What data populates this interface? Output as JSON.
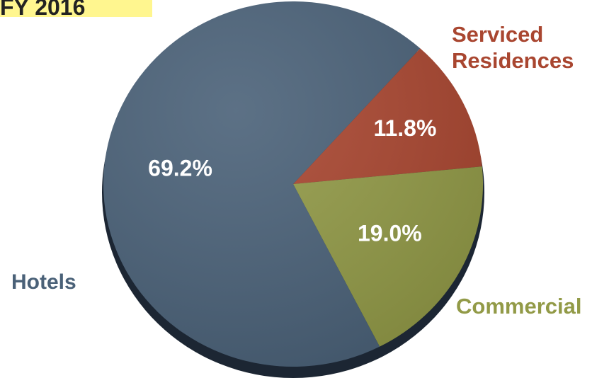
{
  "chart_data": {
    "type": "pie",
    "title": "FY 2016",
    "categories": [
      "Hotels",
      "Serviced Residences",
      "Commercial"
    ],
    "values": [
      69.2,
      11.8,
      19.0
    ],
    "data_labels": [
      "69.2%",
      "11.8%",
      "19.0%"
    ],
    "colors": [
      "#4a6178",
      "#a94630",
      "#929a47"
    ],
    "label_colors": [
      "#4a6178",
      "#a94630",
      "#929a47"
    ]
  },
  "labels": {
    "hotels": "Hotels",
    "serviced_line1": "Serviced",
    "serviced_line2": "Residences",
    "commercial": "Commercial"
  }
}
